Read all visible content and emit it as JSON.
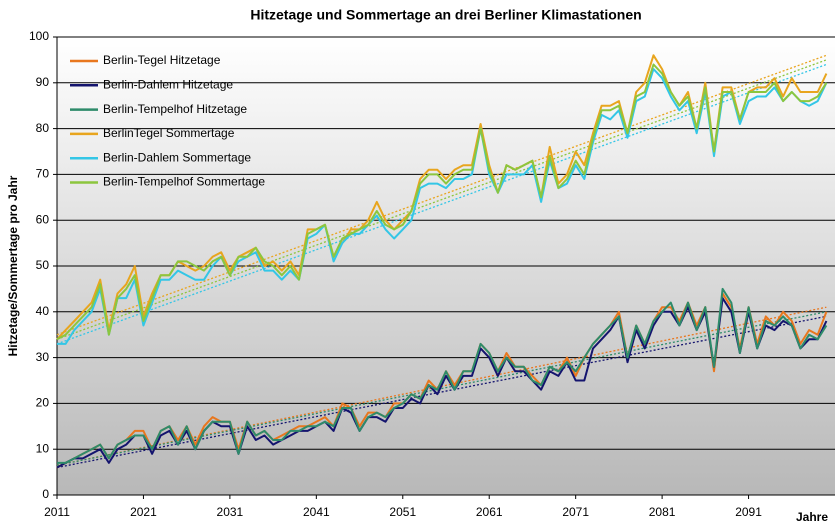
{
  "chart_data": {
    "type": "line",
    "title": "Hitzetage und Sommertage an drei Berliner Klimastationen",
    "y_label": "Hitzetage/Sommertage pro Jahr",
    "x_label": "Jahre",
    "x": [
      2011,
      2012,
      2013,
      2014,
      2015,
      2016,
      2017,
      2018,
      2019,
      2020,
      2021,
      2022,
      2023,
      2024,
      2025,
      2026,
      2027,
      2028,
      2029,
      2030,
      2031,
      2032,
      2033,
      2034,
      2035,
      2036,
      2037,
      2038,
      2039,
      2040,
      2041,
      2042,
      2043,
      2044,
      2045,
      2046,
      2047,
      2048,
      2049,
      2050,
      2051,
      2052,
      2053,
      2054,
      2055,
      2056,
      2057,
      2058,
      2059,
      2060,
      2061,
      2062,
      2063,
      2064,
      2065,
      2066,
      2067,
      2068,
      2069,
      2070,
      2071,
      2072,
      2073,
      2074,
      2075,
      2076,
      2077,
      2078,
      2079,
      2080,
      2081,
      2082,
      2083,
      2084,
      2085,
      2086,
      2087,
      2088,
      2089,
      2090,
      2091,
      2092,
      2093,
      2094,
      2095,
      2096,
      2097,
      2098,
      2099,
      2100
    ],
    "xlim": [
      2011,
      2101
    ],
    "xticks": [
      2011,
      2021,
      2031,
      2041,
      2051,
      2061,
      2071,
      2081,
      2091
    ],
    "ylim": [
      0,
      100
    ],
    "yticks": [
      0,
      10,
      20,
      30,
      40,
      50,
      60,
      70,
      80,
      90,
      100
    ],
    "grid": true,
    "legend": "upper left",
    "series": [
      {
        "name": "Berlin-Tegel Hitzetage",
        "color": "#e8771e",
        "trend": [
          6.5,
          41
        ],
        "values": [
          6,
          7,
          8,
          9,
          10,
          11,
          8,
          11,
          12,
          14,
          14,
          10,
          14,
          15,
          12,
          15,
          11,
          15,
          17,
          16,
          16,
          10,
          16,
          13,
          14,
          12,
          13,
          14,
          15,
          15,
          16,
          17,
          15,
          20,
          19,
          15,
          18,
          18,
          17,
          20,
          20,
          22,
          21,
          25,
          23,
          27,
          24,
          27,
          27,
          33,
          31,
          27,
          31,
          28,
          28,
          26,
          24,
          28,
          27,
          30,
          26,
          30,
          33,
          35,
          37,
          40,
          30,
          37,
          33,
          38,
          41,
          41,
          38,
          42,
          37,
          41,
          27,
          44,
          41,
          32,
          41,
          33,
          39,
          37,
          40,
          38,
          33,
          36,
          35,
          40
        ]
      },
      {
        "name": "Berlin-Dahlem Hitzetage",
        "color": "#14146e",
        "trend": [
          6,
          39
        ],
        "values": [
          6,
          7,
          8,
          8,
          9,
          10,
          7,
          10,
          11,
          13,
          13,
          9,
          13,
          14,
          11,
          14,
          10,
          14,
          16,
          15,
          15,
          9,
          15,
          12,
          13,
          11,
          12,
          13,
          14,
          14,
          15,
          16,
          14,
          19,
          18,
          14,
          17,
          17,
          16,
          19,
          19,
          21,
          20,
          24,
          22,
          26,
          23,
          26,
          26,
          32,
          30,
          26,
          30,
          27,
          27,
          25,
          23,
          27,
          26,
          29,
          25,
          25,
          32,
          34,
          36,
          39,
          29,
          36,
          32,
          37,
          40,
          40,
          37,
          41,
          36,
          40,
          28,
          43,
          40,
          31,
          40,
          32,
          37,
          36,
          38,
          37,
          32,
          34,
          34,
          38
        ]
      },
      {
        "name": "Berlin-Tempelhof Hitzetage",
        "color": "#2e8b6a",
        "trend": [
          6.5,
          40
        ],
        "values": [
          7,
          7,
          8,
          9,
          10,
          11,
          8,
          11,
          12,
          13,
          13,
          10,
          14,
          15,
          11,
          15,
          10,
          14,
          16,
          16,
          16,
          9,
          16,
          13,
          14,
          12,
          12,
          14,
          14,
          15,
          15,
          16,
          15,
          19,
          19,
          14,
          17,
          18,
          17,
          19,
          20,
          22,
          21,
          24,
          23,
          27,
          23,
          27,
          27,
          33,
          31,
          27,
          30,
          28,
          28,
          25,
          24,
          28,
          27,
          29,
          27,
          30,
          33,
          35,
          37,
          39,
          30,
          37,
          33,
          38,
          40,
          42,
          37,
          42,
          36,
          41,
          28,
          45,
          42,
          31,
          41,
          32,
          38,
          37,
          39,
          37,
          32,
          35,
          34,
          37
        ]
      },
      {
        "name": "BerlinTegel Sommertage",
        "color": "#e8a51e",
        "trend": [
          35,
          96
        ],
        "values": [
          34,
          36,
          38,
          40,
          42,
          47,
          36,
          44,
          46,
          50,
          39,
          44,
          48,
          48,
          51,
          50,
          49,
          50,
          52,
          53,
          49,
          52,
          53,
          54,
          50,
          51,
          49,
          51,
          48,
          58,
          58,
          59,
          52,
          55,
          58,
          58,
          60,
          64,
          60,
          58,
          60,
          62,
          69,
          71,
          71,
          69,
          71,
          72,
          72,
          81,
          72,
          66,
          72,
          71,
          72,
          73,
          65,
          76,
          68,
          70,
          75,
          72,
          79,
          85,
          85,
          86,
          79,
          88,
          90,
          96,
          93,
          88,
          85,
          88,
          80,
          90,
          75,
          89,
          89,
          82,
          88,
          89,
          89,
          91,
          87,
          91,
          88,
          88,
          88,
          92
        ]
      },
      {
        "name": "Berlin-Dahlem Sommertage",
        "color": "#33c6e6",
        "trend": [
          33,
          94
        ],
        "values": [
          33,
          33,
          36,
          38,
          40,
          45,
          35,
          43,
          43,
          47,
          37,
          42,
          47,
          47,
          49,
          48,
          47,
          47,
          50,
          52,
          48,
          51,
          52,
          53,
          49,
          49,
          47,
          49,
          47,
          56,
          57,
          59,
          51,
          55,
          57,
          57,
          59,
          61,
          58,
          56,
          58,
          60,
          67,
          68,
          68,
          67,
          69,
          69,
          70,
          80,
          70,
          66,
          70,
          70,
          70,
          72,
          64,
          73,
          67,
          68,
          72,
          69,
          77,
          83,
          82,
          84,
          78,
          86,
          87,
          93,
          91,
          87,
          84,
          86,
          79,
          88,
          74,
          87,
          88,
          81,
          86,
          87,
          87,
          89,
          86,
          88,
          86,
          85,
          86,
          90
        ]
      },
      {
        "name": "Berlin-Tempelhof Sommertage",
        "color": "#8cc63e",
        "trend": [
          34,
          95
        ],
        "values": [
          34,
          35,
          37,
          39,
          41,
          46,
          35,
          43,
          45,
          48,
          38,
          43,
          48,
          48,
          51,
          51,
          50,
          49,
          51,
          52,
          48,
          52,
          52,
          54,
          51,
          50,
          48,
          50,
          47,
          57,
          58,
          59,
          52,
          56,
          57,
          58,
          59,
          62,
          59,
          58,
          59,
          62,
          68,
          70,
          70,
          68,
          70,
          71,
          71,
          80,
          71,
          66,
          72,
          71,
          72,
          73,
          65,
          74,
          67,
          69,
          73,
          70,
          78,
          84,
          84,
          85,
          79,
          87,
          88,
          94,
          92,
          88,
          85,
          87,
          80,
          89,
          75,
          88,
          88,
          82,
          88,
          88,
          88,
          90,
          86,
          88,
          86,
          86,
          87,
          90
        ]
      }
    ]
  }
}
